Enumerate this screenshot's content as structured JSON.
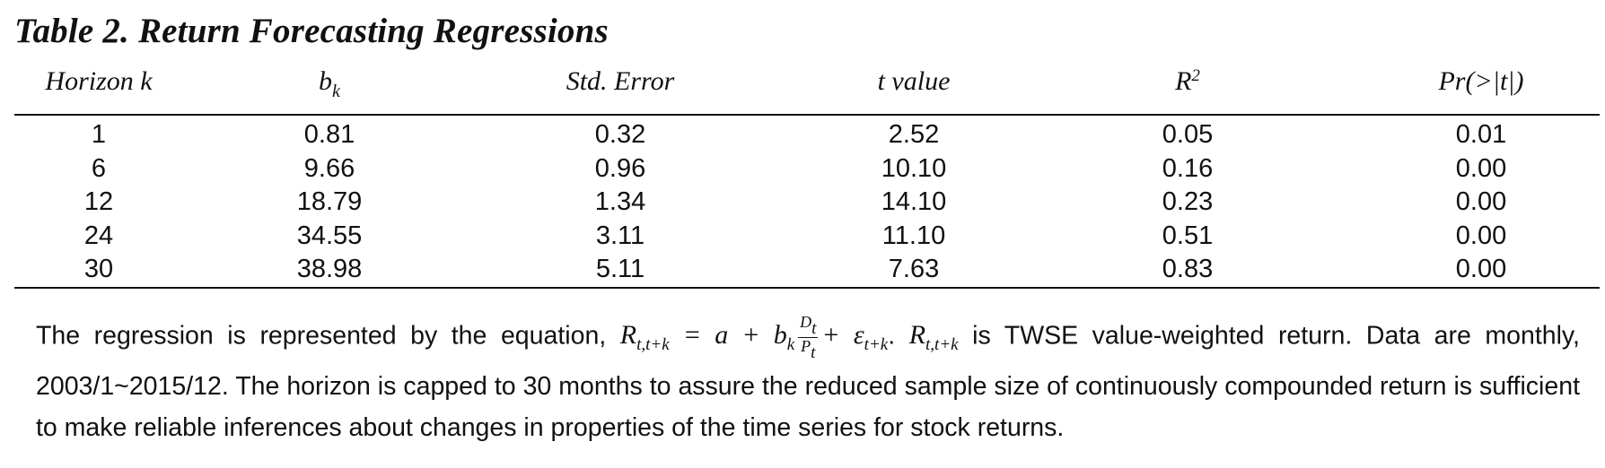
{
  "title": "Table 2. Return Forecasting Regressions",
  "headers": {
    "horizon": "Horizon k",
    "bk_base": "b",
    "bk_sub": "k",
    "std_error": "Std. Error",
    "t_value": "t value",
    "r2_base": "R",
    "r2_sup": "2",
    "pr": "Pr(>|t|)"
  },
  "rows": [
    {
      "horizon": "1",
      "bk": "0.81",
      "std_error": "0.32",
      "t_value": "2.52",
      "r2": "0.05",
      "pr": "0.01"
    },
    {
      "horizon": "6",
      "bk": "9.66",
      "std_error": "0.96",
      "t_value": "10.10",
      "r2": "0.16",
      "pr": "0.00"
    },
    {
      "horizon": "12",
      "bk": "18.79",
      "std_error": "1.34",
      "t_value": "14.10",
      "r2": "0.23",
      "pr": "0.00"
    },
    {
      "horizon": "24",
      "bk": "34.55",
      "std_error": "3.11",
      "t_value": "11.10",
      "r2": "0.51",
      "pr": "0.00"
    },
    {
      "horizon": "30",
      "bk": "38.98",
      "std_error": "5.11",
      "t_value": "7.63",
      "r2": "0.83",
      "pr": "0.00"
    }
  ],
  "note": {
    "intro": "The regression is represented by the equation, ",
    "eq_R": "R",
    "eq_R_sub": "t,t+k",
    "eq_eq": " = a + b",
    "eq_b_sub": "k",
    "eq_frac_num": "D",
    "eq_frac_num_sub": "t",
    "eq_frac_den": "P",
    "eq_frac_den_sub": "t",
    "eq_plus": "+ ε",
    "eq_eps_sub": "t+k",
    "eq_period": ". ",
    "eq_R2": "R",
    "eq_R2_sub": "t,t+k",
    "rest": " is TWSE value-weighted return. Data are monthly, 2003/1~2015/12. The horizon is capped to 30 months to assure the reduced sample size of continuously compounded return is sufficient to make reliable inferences about changes in properties of the time series for stock returns."
  }
}
